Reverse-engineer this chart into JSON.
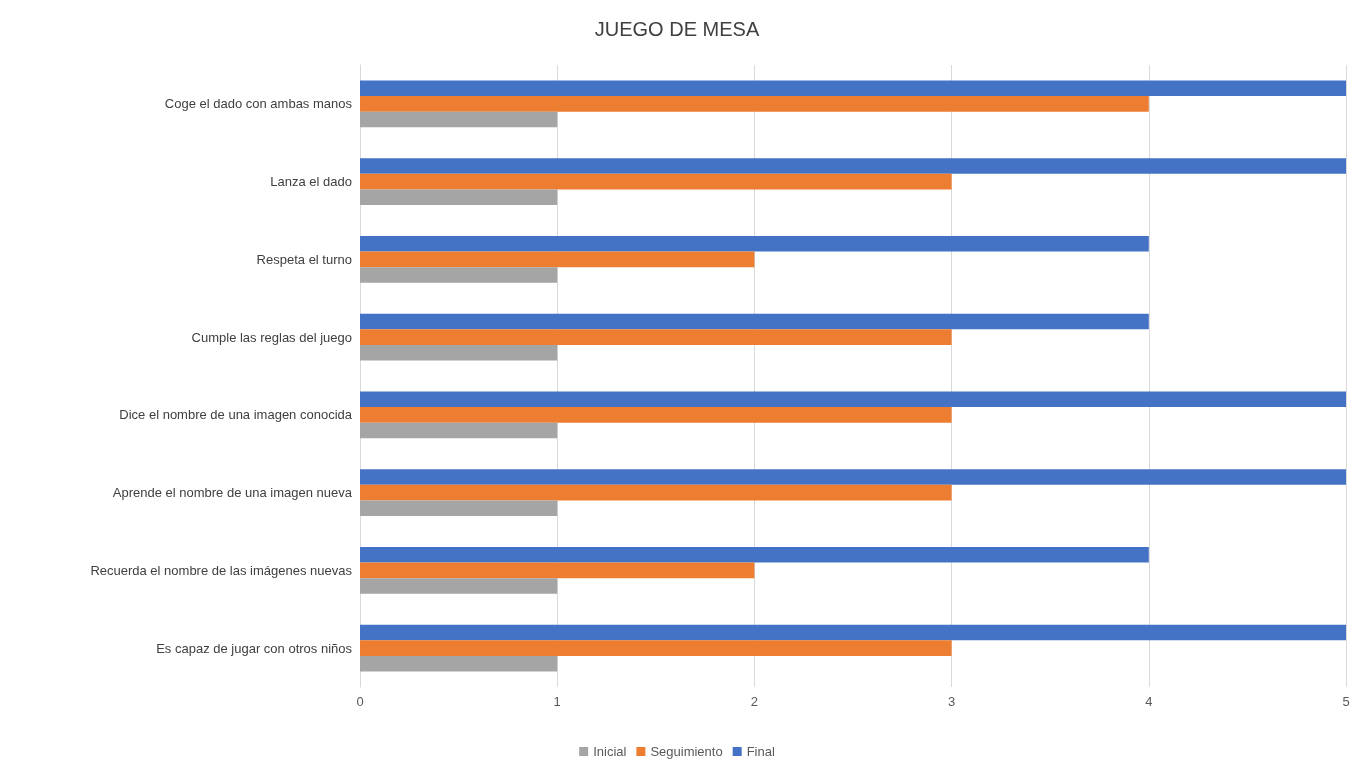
{
  "chart_data": {
    "type": "bar",
    "title": "JUEGO DE MESA",
    "orientation": "horizontal",
    "categories": [
      "Coge el dado con ambas manos",
      "Lanza el dado",
      "Respeta el turno",
      "Cumple las reglas del juego",
      "Dice el nombre de una imagen conocida",
      "Aprende el nombre de una imagen nueva",
      "Recuerda el nombre de las imágenes nuevas",
      "Es capaz de jugar con otros niños"
    ],
    "series": [
      {
        "name": "Inicial",
        "color": "#a5a5a5",
        "values": [
          1,
          1,
          1,
          1,
          1,
          1,
          1,
          1
        ]
      },
      {
        "name": "Seguimiento",
        "color": "#ed7d31",
        "values": [
          4,
          3,
          2,
          3,
          3,
          3,
          2,
          3
        ]
      },
      {
        "name": "Final",
        "color": "#4472c4",
        "values": [
          5,
          5,
          4,
          4,
          5,
          5,
          4,
          5
        ]
      }
    ],
    "xlim": [
      0,
      5
    ],
    "xticks": [
      0,
      1,
      2,
      3,
      4,
      5
    ],
    "grid": "x",
    "legend": "bottom"
  }
}
